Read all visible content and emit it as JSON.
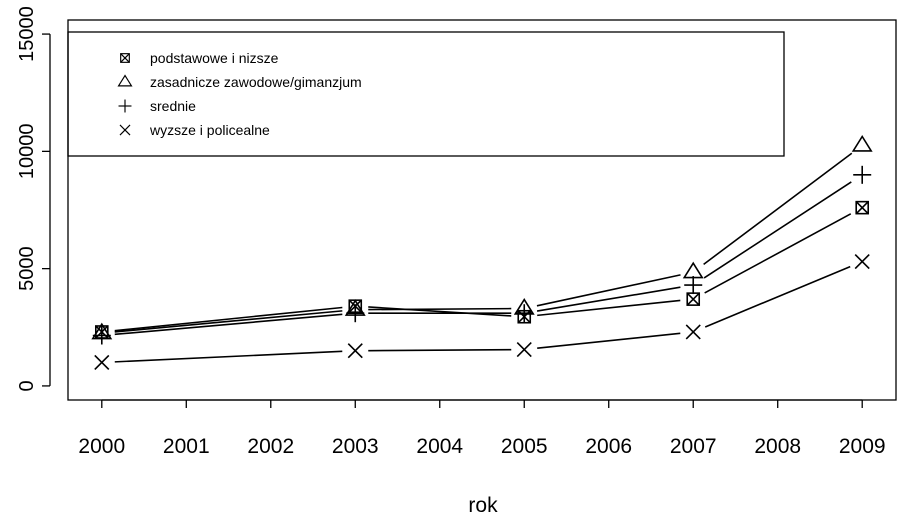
{
  "chart_data": {
    "type": "line",
    "title": "",
    "xlabel": "rok",
    "ylabel": "",
    "x": [
      2000,
      2003,
      2005,
      2007,
      2009
    ],
    "xlim": [
      1999.6,
      2009.4
    ],
    "ylim": [
      -600,
      15600
    ],
    "x_ticks": [
      "2000",
      "2001",
      "2002",
      "2003",
      "2004",
      "2005",
      "2006",
      "2007",
      "2008",
      "2009"
    ],
    "y_ticks": [
      0,
      5000,
      10000,
      15000
    ],
    "grid": false,
    "legend_position": "top-left",
    "series": [
      {
        "name": "podstawowe i nizsze",
        "marker": "square-cross",
        "values": [
          2300,
          3400,
          2950,
          3700,
          7600
        ]
      },
      {
        "name": "zasadnicze zawodowe/gimanzjum",
        "marker": "triangle",
        "values": [
          2250,
          3250,
          3300,
          4850,
          10250
        ]
      },
      {
        "name": "srednie",
        "marker": "plus",
        "values": [
          2150,
          3100,
          3100,
          4300,
          9000
        ]
      },
      {
        "name": "wyzsze i policealne",
        "marker": "x",
        "values": [
          1000,
          1500,
          1550,
          2300,
          5300
        ]
      }
    ]
  }
}
